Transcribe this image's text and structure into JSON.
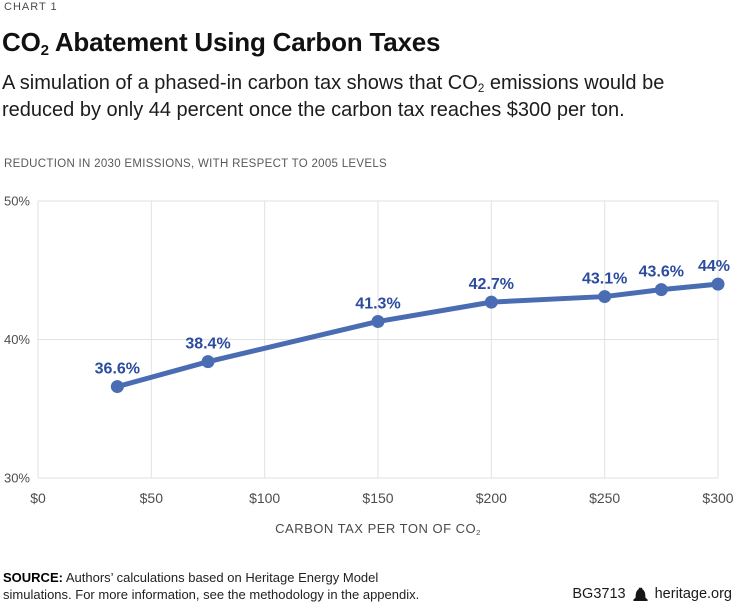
{
  "header": {
    "chart_label": "CHART 1",
    "title": {
      "prefix": "CO",
      "sub": "2",
      "rest": " Abatement Using Carbon Taxes"
    },
    "subtitle": {
      "part1": "A simulation of a phased-in carbon tax shows that CO",
      "sub": "2",
      "part2": " emissions would be reduced by only 44 percent once the carbon tax reaches $300 per ton."
    }
  },
  "chart_data": {
    "type": "line",
    "title": "CO2 Abatement Using Carbon Taxes",
    "eyebrow": "REDUCTION IN 2030 EMISSIONS, WITH RESPECT TO 2005 LEVELS",
    "x": [
      35,
      75,
      150,
      200,
      250,
      275,
      300
    ],
    "values": [
      36.6,
      38.4,
      41.3,
      42.7,
      43.1,
      43.6,
      44
    ],
    "point_labels": [
      "36.6%",
      "38.4%",
      "41.3%",
      "42.7%",
      "43.1%",
      "43.6%",
      "44%"
    ],
    "label_dx": [
      0,
      0,
      0,
      0,
      0,
      0,
      -4
    ],
    "x_ticks": [
      {
        "value": 0,
        "label": "$0"
      },
      {
        "value": 50,
        "label": "$50"
      },
      {
        "value": 100,
        "label": "$100"
      },
      {
        "value": 150,
        "label": "$150"
      },
      {
        "value": 200,
        "label": "$200"
      },
      {
        "value": 250,
        "label": "$250"
      },
      {
        "value": 300,
        "label": "$300"
      }
    ],
    "y_ticks": [
      {
        "value": 30,
        "label": "30%"
      },
      {
        "value": 40,
        "label": "40%"
      },
      {
        "value": 50,
        "label": "50%"
      }
    ],
    "xlim": [
      0,
      300
    ],
    "ylim": [
      30,
      50
    ],
    "xlabel": {
      "main": "CARBON TAX PER TON OF CO",
      "sub": "2"
    },
    "grid": true,
    "legend": false,
    "colors": {
      "line": "#4a6cb2",
      "point_label": "#2b4c9e",
      "grid": "#e2e2e2",
      "tick": "#4d4d4d"
    }
  },
  "footer": {
    "source_label": "SOURCE:",
    "source_text": "Authors’ calculations based on Heritage Energy Model\nsimulations. For more information, see the methodology in the appendix.",
    "doc_id": "BG3713",
    "brand_icon": "liberty-bell-icon",
    "site": "heritage.org"
  }
}
